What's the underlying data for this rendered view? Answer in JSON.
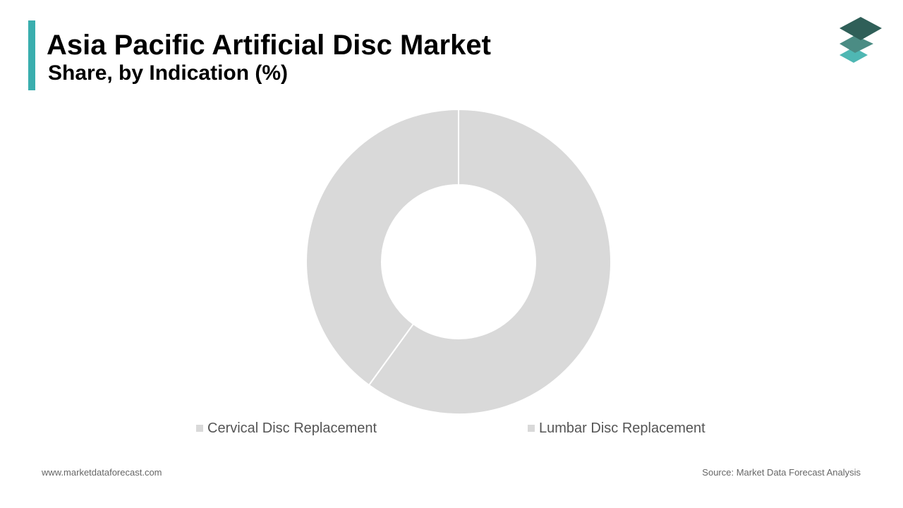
{
  "header": {
    "title": "Asia Pacific Artificial Disc Market",
    "subtitle": "Share, by Indication (%)"
  },
  "colors": {
    "accent": "#3aaeae",
    "slice": "#d9d9d9",
    "separator": "#ffffff",
    "logo_top": "#2f5f58",
    "logo_mid": "#4b8c84",
    "logo_bottom": "#4fb7b3"
  },
  "logo": {
    "icon": "stacked-layers-icon"
  },
  "chart_data": {
    "type": "pie",
    "variant": "donut",
    "categories": [
      "Cervical Disc Replacement",
      "Lumbar Disc Replacement"
    ],
    "values": [
      60,
      40
    ],
    "unit": "%",
    "legend_position": "bottom"
  },
  "footer": {
    "website": "www.marketdataforecast.com",
    "source": "Source: Market Data Forecast Analysis"
  }
}
